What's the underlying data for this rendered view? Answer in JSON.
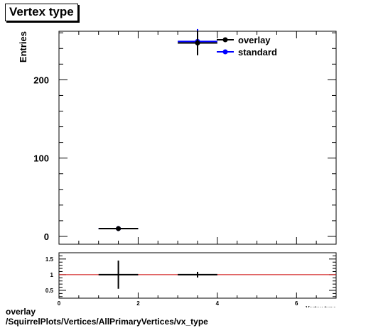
{
  "chart_data": [
    {
      "type": "scatter",
      "title": "Vertex type",
      "ylabel": "Entries",
      "xlabel": "Vertex type",
      "xlim": [
        0,
        7
      ],
      "ylim": [
        -10,
        262
      ],
      "xticks": [
        0,
        2,
        4,
        6
      ],
      "yticks": [
        0,
        100,
        200
      ],
      "legend_position": "top-right",
      "series": [
        {
          "name": "overlay",
          "color": "#000000",
          "points": [
            {
              "x": 1.5,
              "xerr": 0.5,
              "y": 10,
              "yerr": 3.2
            },
            {
              "x": 3.5,
              "xerr": 0.5,
              "y": 247,
              "yerr": 15.7
            }
          ]
        },
        {
          "name": "standard",
          "color": "#0000ff",
          "points": [
            {
              "x": 1.5,
              "xerr": 0.5,
              "y": 10,
              "yerr": 3.2
            },
            {
              "x": 3.5,
              "xerr": 0.5,
              "y": 249,
              "yerr": 15.8
            }
          ]
        }
      ]
    },
    {
      "type": "scatter",
      "title": "",
      "xlim": [
        0,
        7
      ],
      "ylim": [
        0.25,
        1.7
      ],
      "xticks": [
        0,
        2,
        4,
        6
      ],
      "yticks": [
        0.5,
        1,
        1.5
      ],
      "reference_line": {
        "y": 1,
        "color": "#cc0000"
      },
      "series": [
        {
          "name": "",
          "color": "#000000",
          "points": [
            {
              "x": 1.5,
              "xerr": 0.5,
              "y": 1.0,
              "yerr": 0.45
            },
            {
              "x": 3.5,
              "xerr": 0.5,
              "y": 1.0,
              "yerr": 0.09
            }
          ]
        }
      ]
    }
  ],
  "footer": {
    "line1": "overlay",
    "line2": "/SquirrelPlots/Vertices/AllPrimaryVertices/vx_type"
  }
}
